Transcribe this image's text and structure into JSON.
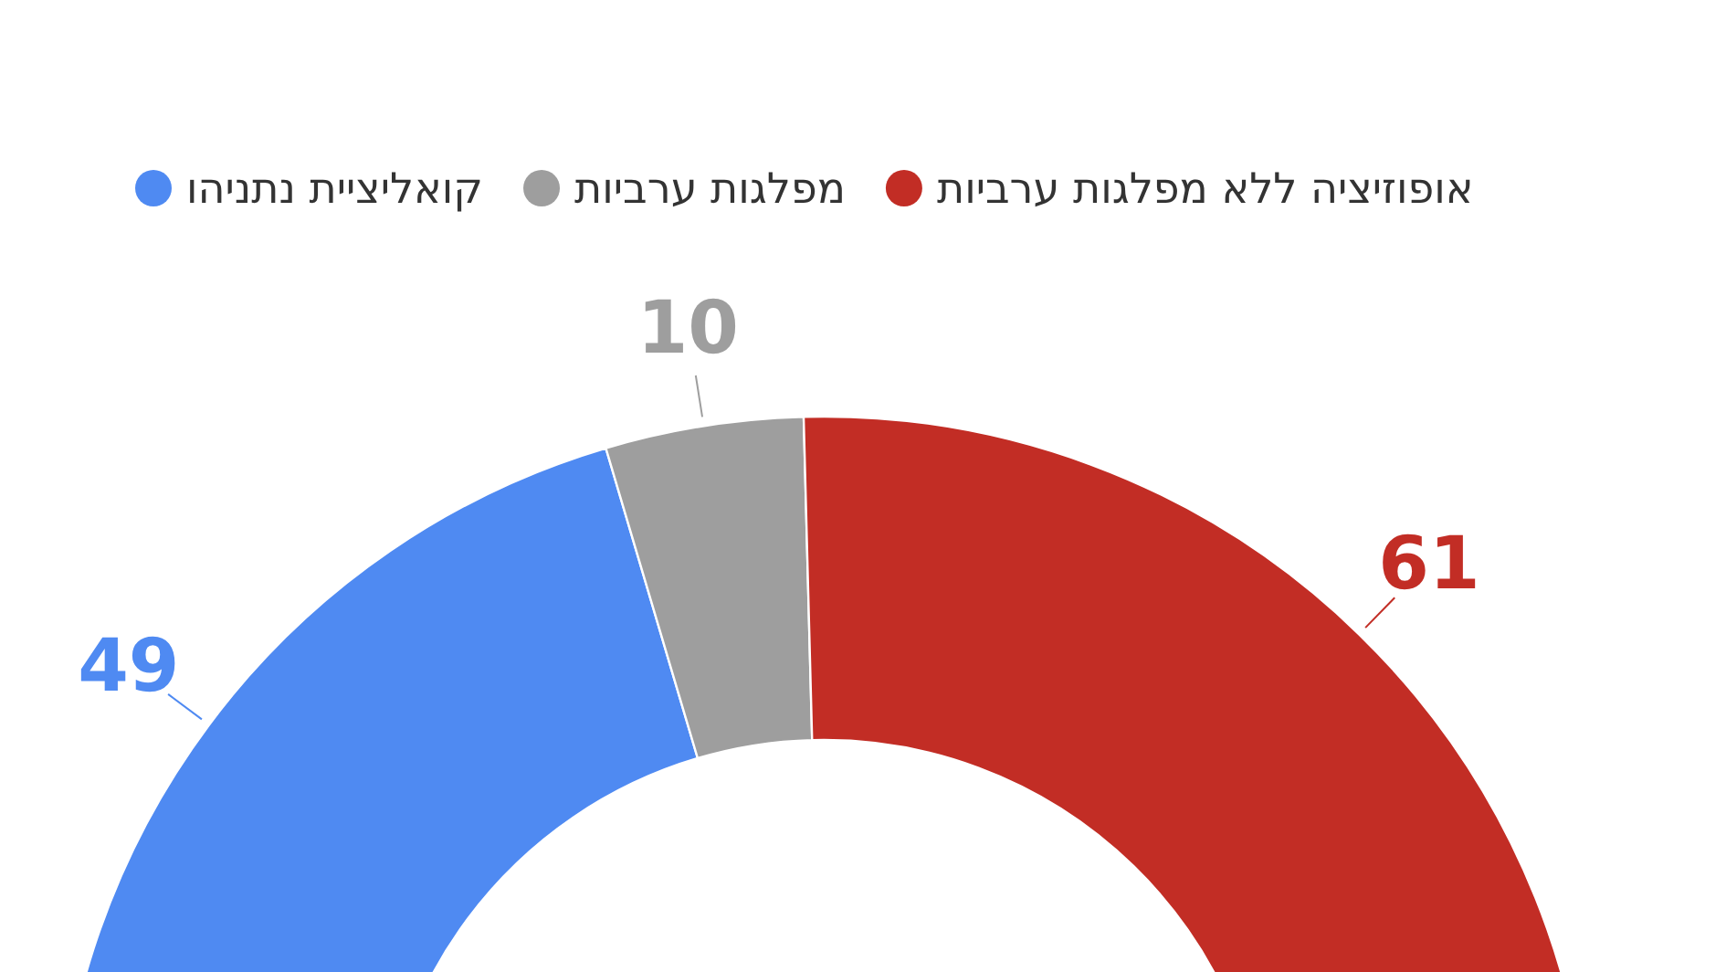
{
  "chart_data": {
    "type": "donut",
    "categories": [
      "קואליציית נתניהו",
      "מפלגות ערביות",
      "אופוזיציה ללא מפלגות ערביות"
    ],
    "values": [
      49,
      10,
      61
    ],
    "colors": [
      "#4f8af2",
      "#9e9e9e",
      "#c22d25"
    ],
    "data_labels": true,
    "legend": "top"
  }
}
